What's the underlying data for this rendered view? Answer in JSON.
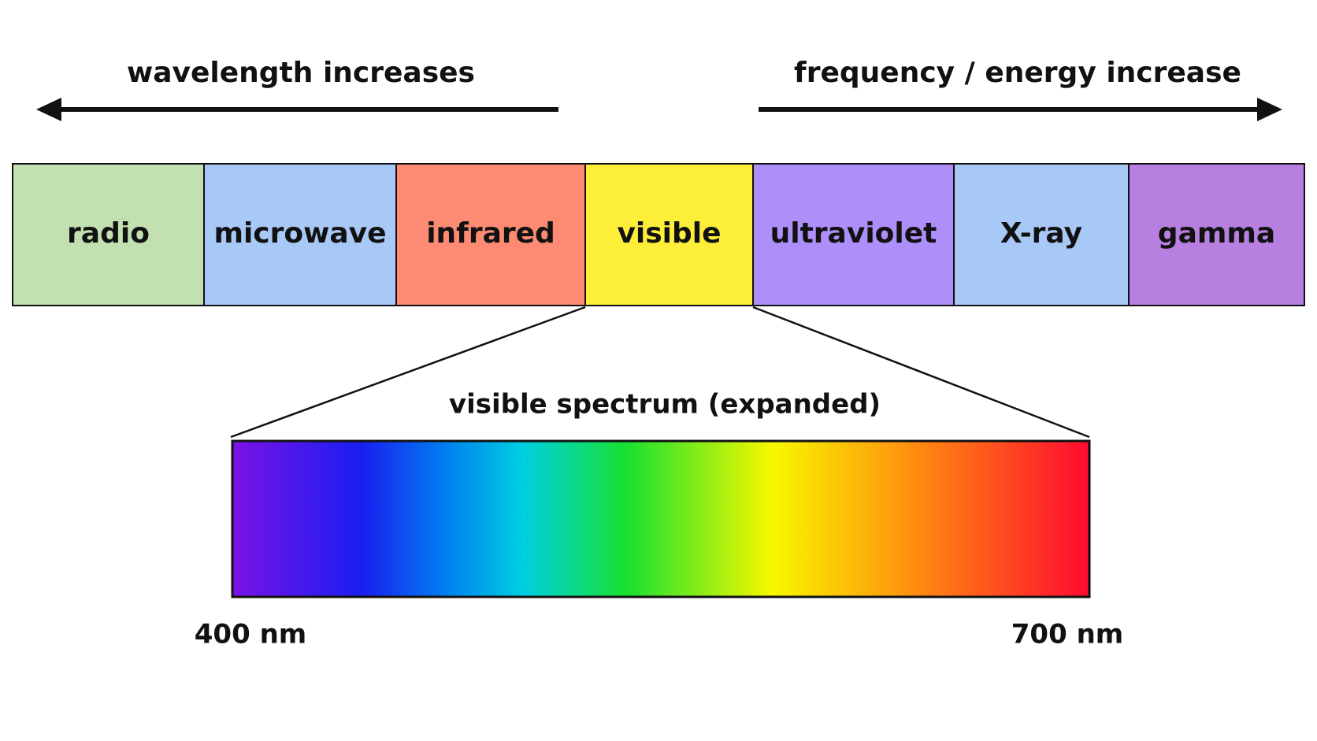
{
  "header": {
    "left_arrow": "wavelength increases",
    "right_arrow": "frequency / energy increase"
  },
  "bands": [
    {
      "label": "radio",
      "color": "#c2e0b0"
    },
    {
      "label": "microwave",
      "color": "#a8c8f6"
    },
    {
      "label": "infrared",
      "color": "#fd8a72"
    },
    {
      "label": "visible",
      "color": "#fdee3a"
    },
    {
      "label": "ultraviolet",
      "color": "#ae8ef8"
    },
    {
      "label": "X-ray",
      "color": "#a8c8f6"
    },
    {
      "label": "gamma",
      "color": "#b77fdf"
    }
  ],
  "expanded": {
    "title": "visible spectrum (expanded)",
    "start_label": "400 nm",
    "end_label": "700 nm"
  }
}
